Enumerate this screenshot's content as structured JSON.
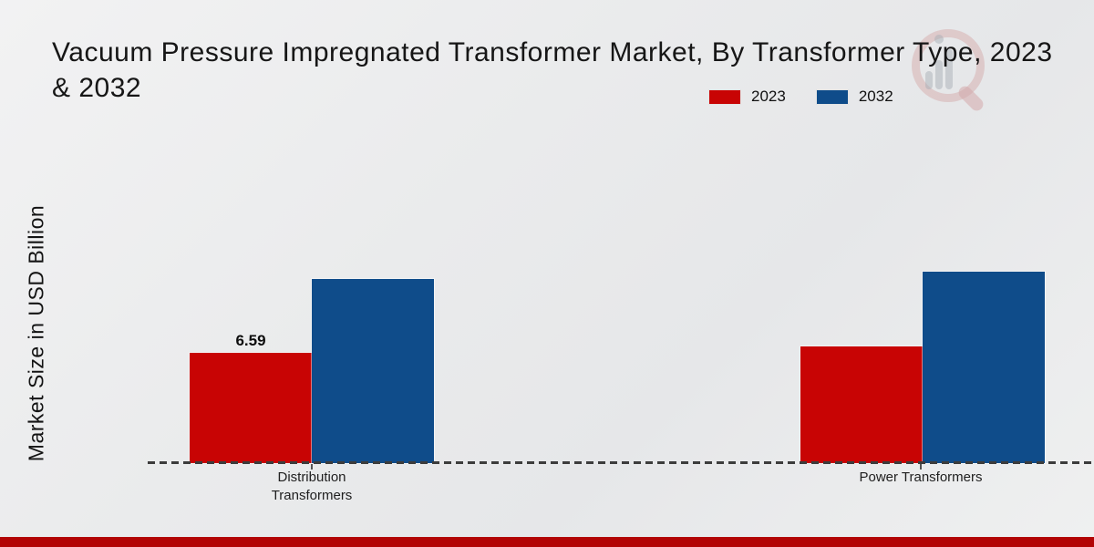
{
  "title": {
    "line1": "Vacuum Pressure Impregnated  Transformer Market, By Transformer Type, 2023",
    "line2": "& 2032"
  },
  "legend": [
    {
      "label": "2023",
      "color": "#c80404"
    },
    {
      "label": "2032",
      "color": "#0f4c8a"
    }
  ],
  "y_axis_label": "Market Size in USD Billion",
  "chart_data": {
    "type": "bar",
    "title": "Vacuum Pressure Impregnated Transformer Market, By Transformer Type, 2023 & 2032",
    "categories": [
      "Distribution Transformers",
      "Power Transformers"
    ],
    "series": [
      {
        "name": "2023",
        "color": "#c80404",
        "values": [
          6.59,
          6.98
        ],
        "labels": [
          "6.59",
          null
        ]
      },
      {
        "name": "2032",
        "color": "#0f4c8a",
        "values": [
          11.0,
          11.43
        ],
        "labels": [
          null,
          null
        ]
      }
    ],
    "ylabel": "Market Size in USD Billion",
    "ylim": [
      0,
      12.5
    ],
    "grid": false,
    "axis_style": "dashed-baseline-only",
    "legend_position": "top-right"
  },
  "watermark": {
    "name": "market-research-magnifier-logo"
  },
  "footer": {
    "bar_color": "#b20404"
  }
}
